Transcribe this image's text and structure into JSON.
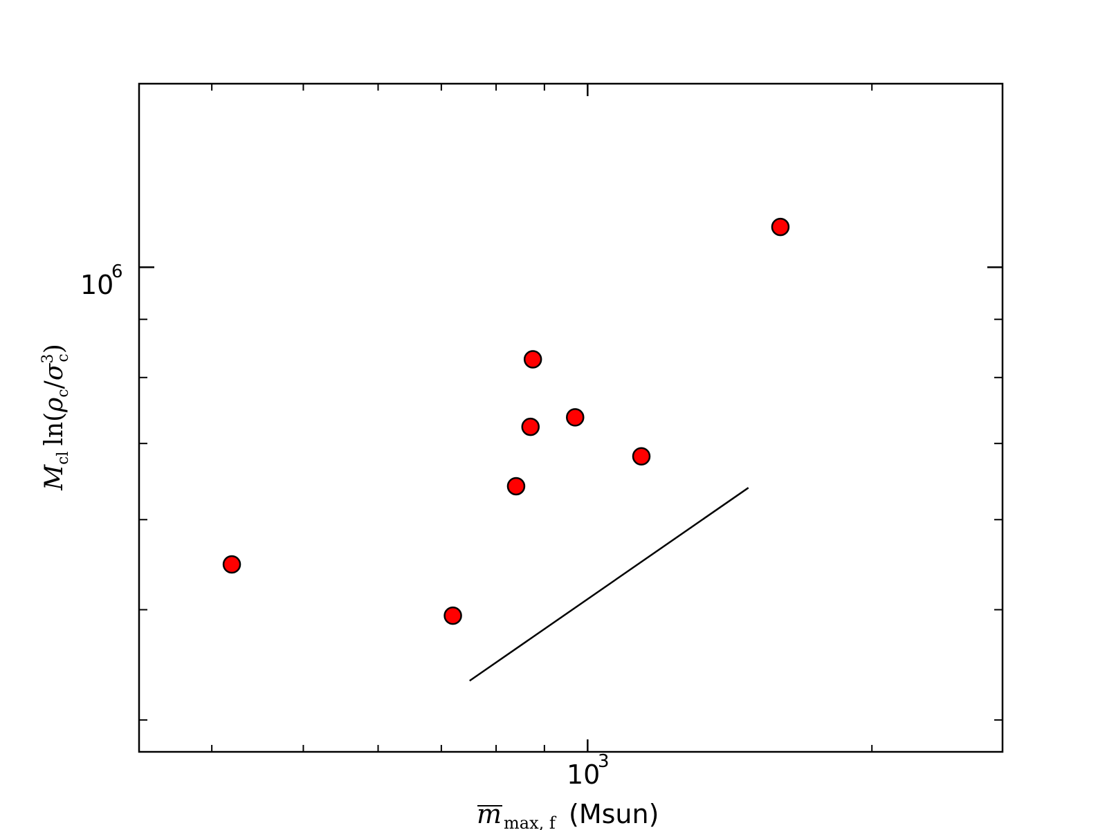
{
  "chart_data": {
    "type": "scatter",
    "xscale": "log",
    "yscale": "log",
    "xlim": [
      335,
      2750
    ],
    "ylim": [
      375000,
      1450000
    ],
    "x_tick_labels": {
      "base": "10",
      "exp": "3"
    },
    "y_tick_labels": {
      "base": "10",
      "exp": "6"
    },
    "xlabel": {
      "symbol": "m",
      "subscript": "max, f",
      "unit": "(Msun)"
    },
    "ylabel": {
      "symbol": "M",
      "sub_cl": "cl",
      "ln": "ln(",
      "rho": "ρ",
      "sub_c1": "c",
      "slash": "/",
      "sigma": "σ",
      "sub_c2": "c",
      "sup": "3",
      "close": ")"
    },
    "marker_color": "#ff0000",
    "marker_edge": "#000000",
    "points": [
      {
        "x": 420,
        "y": 548000
      },
      {
        "x": 720,
        "y": 494000
      },
      {
        "x": 840,
        "y": 642000
      },
      {
        "x": 870,
        "y": 724000
      },
      {
        "x": 875,
        "y": 830000
      },
      {
        "x": 970,
        "y": 738000
      },
      {
        "x": 1140,
        "y": 682000
      },
      {
        "x": 1600,
        "y": 1085000
      }
    ],
    "line": {
      "x": [
        750,
        1480
      ],
      "y": [
        433000,
        640000
      ]
    }
  }
}
